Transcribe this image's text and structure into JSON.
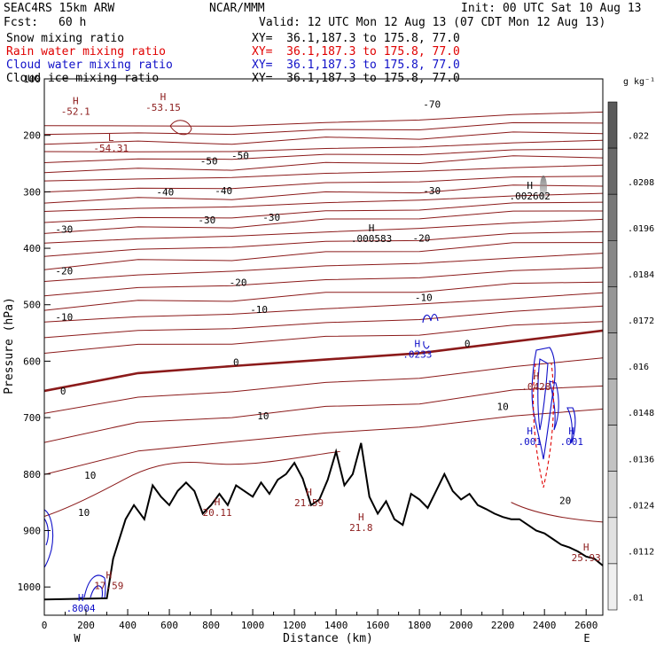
{
  "header": {
    "model": "SEAC4RS 15km ARW",
    "center": "NCAR/MMM",
    "init": "Init: 00 UTC Sat 10 Aug 13",
    "fcst_label": "Fcst:",
    "fcst_value": "60 h",
    "valid": "Valid: 12 UTC Mon 12 Aug 13 (07 CDT Mon 12 Aug 13)"
  },
  "fields": [
    {
      "name": "Snow mixing ratio",
      "xy": "XY=  36.1,187.3 to 175.8, 77.0",
      "color": "#000000"
    },
    {
      "name": "Rain water mixing ratio",
      "xy": "XY=  36.1,187.3 to 175.8, 77.0",
      "color": "#e00000"
    },
    {
      "name": "Cloud water mixing ratio",
      "xy": "XY=  36.1,187.3 to 175.8, 77.0",
      "color": "#1010c8"
    },
    {
      "name": "Cloud ice mixing ratio",
      "xy": "XY=  36.1,187.3 to 175.8, 77.0",
      "color": "#000000"
    }
  ],
  "colorbar": {
    "unit": "g kg⁻¹",
    "ticks": [
      ".022",
      ".0208",
      ".0196",
      ".0184",
      ".0172",
      ".016",
      ".0148",
      ".0136",
      ".0124",
      ".0112",
      ".01"
    ]
  },
  "chart_data": {
    "type": "cross-section contour",
    "xlabel": "Distance (km)",
    "ylabel": "Pressure (hPa)",
    "xlim": [
      0,
      2680
    ],
    "ylim": [
      1050,
      100
    ],
    "x_ticks": [
      "0",
      "200",
      "400",
      "600",
      "800",
      "1000",
      "1200",
      "1400",
      "1600",
      "1800",
      "2000",
      "2200",
      "2400",
      "2600"
    ],
    "y_ticks": [
      "100",
      "200",
      "300",
      "400",
      "500",
      "600",
      "700",
      "800",
      "900",
      "1000"
    ],
    "west_label": "W",
    "east_label": "E",
    "temperature_contours": [
      {
        "value": -70,
        "label": "-70"
      },
      {
        "value": -50,
        "label": "-50"
      },
      {
        "value": -40,
        "label": "-40"
      },
      {
        "value": -30,
        "label": "-30"
      },
      {
        "value": -20,
        "label": "-20"
      },
      {
        "value": -10,
        "label": "-10"
      },
      {
        "value": 0,
        "label": "0"
      },
      {
        "value": 10,
        "label": "10"
      },
      {
        "value": 20,
        "label": "20"
      }
    ],
    "contour_labels": [
      {
        "text": "-70",
        "x": 1860,
        "p": 145
      },
      {
        "text": "-50",
        "x": 790,
        "p": 245
      },
      {
        "text": "-50",
        "x": 940,
        "p": 236
      },
      {
        "text": "-40",
        "x": 580,
        "p": 300
      },
      {
        "text": "-40",
        "x": 860,
        "p": 298
      },
      {
        "text": "-30",
        "x": 780,
        "p": 350
      },
      {
        "text": "-30",
        "x": 1090,
        "p": 345
      },
      {
        "text": "-30",
        "x": 1860,
        "p": 298
      },
      {
        "text": "-30",
        "x": 95,
        "p": 366
      },
      {
        "text": "-20",
        "x": 95,
        "p": 440
      },
      {
        "text": "-20",
        "x": 930,
        "p": 460
      },
      {
        "text": "-20",
        "x": 1810,
        "p": 382
      },
      {
        "text": "-10",
        "x": 95,
        "p": 522
      },
      {
        "text": "-10",
        "x": 1030,
        "p": 508
      },
      {
        "text": "-10",
        "x": 1820,
        "p": 487
      },
      {
        "text": "0",
        "x": 90,
        "p": 653
      },
      {
        "text": "0",
        "x": 920,
        "p": 602
      },
      {
        "text": "0",
        "x": 2030,
        "p": 569
      },
      {
        "text": "10",
        "x": 1050,
        "p": 697
      },
      {
        "text": "10",
        "x": 220,
        "p": 802
      },
      {
        "text": "10",
        "x": 190,
        "p": 868
      },
      {
        "text": "10",
        "x": 2200,
        "p": 680
      },
      {
        "text": "20",
        "x": 2500,
        "p": 847
      }
    ],
    "extrema": [
      {
        "type": "H",
        "value": "-52.1",
        "x": 150,
        "p": 145,
        "color": "#8b1a1a"
      },
      {
        "type": "H",
        "value": "-53.15",
        "x": 570,
        "p": 138,
        "color": "#8b1a1a"
      },
      {
        "type": "L",
        "value": "-54.31",
        "x": 320,
        "p": 210,
        "color": "#8b1a1a"
      },
      {
        "type": "H",
        "value": ".000583",
        "x": 1570,
        "p": 370,
        "color": "#000000"
      },
      {
        "type": "H",
        "value": ".002602",
        "x": 2330,
        "p": 295,
        "color": "#000000"
      },
      {
        "type": "H",
        "value": ".0233",
        "x": 1790,
        "p": 575,
        "color": "#1010c8"
      },
      {
        "type": "H",
        "value": ".0428",
        "x": 2360,
        "p": 632,
        "color": "#8b1a1a"
      },
      {
        "type": "H",
        "value": ".001",
        "x": 2330,
        "p": 730,
        "color": "#1010c8"
      },
      {
        "type": "H",
        "value": ".001",
        "x": 2530,
        "p": 730,
        "color": "#1010c8"
      },
      {
        "type": "H",
        "value": "20.11",
        "x": 830,
        "p": 855,
        "color": "#8b1a1a"
      },
      {
        "type": "H",
        "value": "21.59",
        "x": 1270,
        "p": 838,
        "color": "#8b1a1a"
      },
      {
        "type": "H",
        "value": "21.8",
        "x": 1520,
        "p": 882,
        "color": "#8b1a1a"
      },
      {
        "type": "H",
        "value": "25.93",
        "x": 2600,
        "p": 935,
        "color": "#8b1a1a"
      },
      {
        "type": "H",
        "value": "17.59",
        "x": 310,
        "p": 985,
        "color": "#8b1a1a"
      },
      {
        "type": "H",
        "value": ".8004",
        "x": 175,
        "p": 1025,
        "color": "#1010c8"
      }
    ],
    "terrain": {
      "x": [
        0,
        300,
        330,
        390,
        430,
        480,
        520,
        560,
        600,
        640,
        680,
        720,
        760,
        800,
        840,
        880,
        920,
        960,
        1000,
        1040,
        1080,
        1120,
        1160,
        1200,
        1240,
        1280,
        1320,
        1360,
        1400,
        1440,
        1480,
        1520,
        1560,
        1600,
        1640,
        1680,
        1720,
        1760,
        1800,
        1840,
        1880,
        1920,
        1960,
        2000,
        2040,
        2080,
        2120,
        2160,
        2200,
        2240,
        2280,
        2320,
        2360,
        2400,
        2440,
        2480,
        2520,
        2560,
        2600,
        2640,
        2680
      ],
      "p": [
        1022,
        1020,
        950,
        880,
        855,
        880,
        820,
        840,
        855,
        830,
        815,
        830,
        870,
        855,
        835,
        855,
        820,
        830,
        840,
        815,
        835,
        810,
        800,
        780,
        808,
        855,
        845,
        810,
        760,
        820,
        800,
        745,
        840,
        870,
        848,
        880,
        890,
        835,
        845,
        860,
        830,
        800,
        830,
        845,
        835,
        855,
        862,
        870,
        876,
        880,
        880,
        890,
        900,
        905,
        915,
        925,
        930,
        937,
        946,
        950,
        962
      ]
    }
  }
}
